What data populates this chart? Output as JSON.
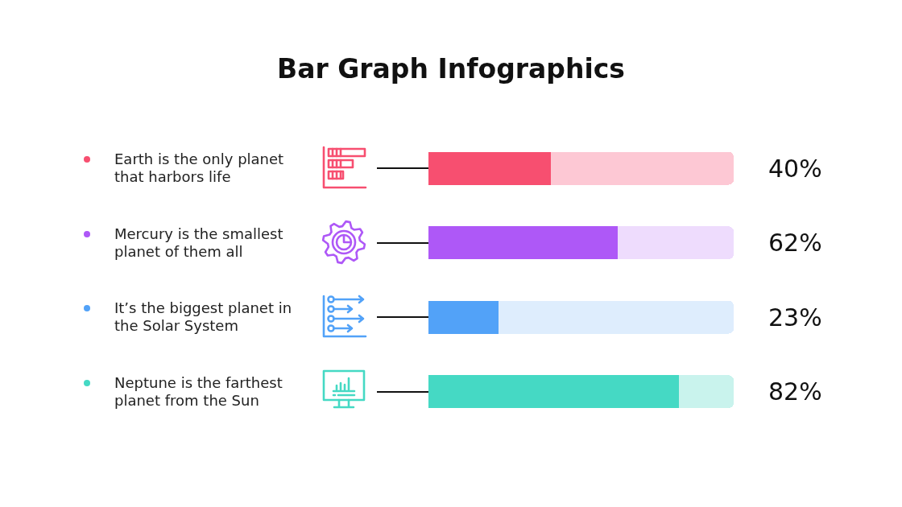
{
  "chart_data": {
    "type": "bar",
    "title": "Bar Graph Infographics",
    "orientation": "horizontal",
    "stacked": true,
    "categories": [
      "Earth is the only planet that harbors life",
      "Mercury is the smallest planet of them all",
      "It’s the biggest planet in the Solar System",
      "Neptune is the farthest planet from the Sun"
    ],
    "series": [
      {
        "colors": [
          "#f74f70",
          "#ae58f7",
          "#52a2f8",
          "#45d9c4"
        ],
        "values": [
          40,
          62,
          23,
          82
        ],
        "value_labels": [
          "40%",
          "62%",
          "23%",
          "82%"
        ]
      },
      {
        "colors": [
          "#fdc8d4",
          "#eedcfd",
          "#deedfd",
          "#c9f3ed"
        ],
        "values": [
          60,
          38,
          77,
          18
        ]
      }
    ],
    "xlim": [
      0,
      100
    ],
    "tick_labels": "y"
  }
}
